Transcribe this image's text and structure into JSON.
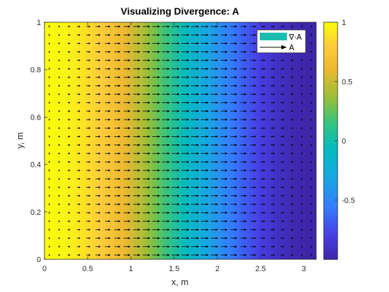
{
  "chart_data": {
    "type": "heatmap",
    "title": "Visualizing Divergence: A",
    "xlabel": "x, m",
    "ylabel": "y, m",
    "xlim": [
      0,
      3.14159
    ],
    "ylim": [
      0,
      1
    ],
    "xticks": [
      "0",
      "0.5",
      "1",
      "1.5",
      "2",
      "2.5",
      "3"
    ],
    "yticks": [
      "0",
      "0.2",
      "0.4",
      "0.6",
      "0.8",
      "1"
    ],
    "field": {
      "divergence_formula": "cos(x)",
      "vector_formula": "A = sin(x) x̂",
      "grid_n": 28
    },
    "colorbar": {
      "colormap": "parula",
      "clim": [
        -1,
        1
      ],
      "ticks": [
        "-0.5",
        "0",
        "0.5",
        "1"
      ]
    },
    "legend": {
      "location": "top-right",
      "entries": [
        {
          "label": "∇·A",
          "color": "#1cbdb1",
          "kind": "patch"
        },
        {
          "label": "A",
          "color": "#000000",
          "kind": "arrow"
        }
      ]
    }
  }
}
